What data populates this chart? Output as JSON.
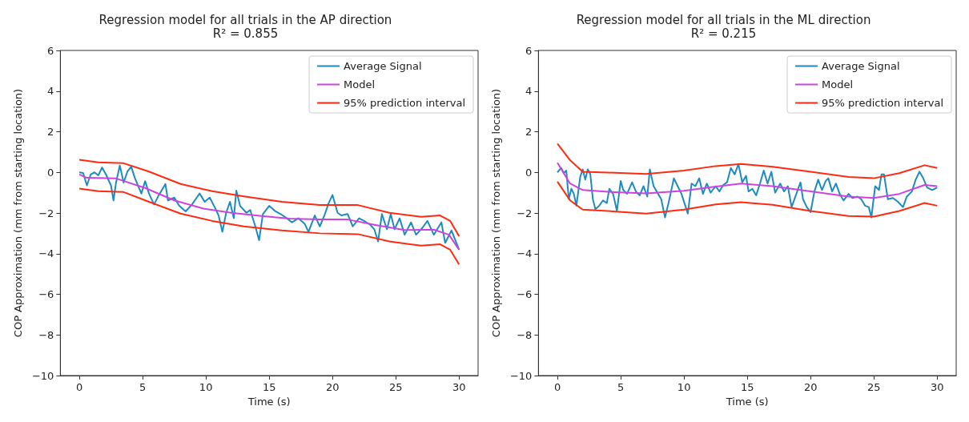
{
  "chart_data": [
    {
      "type": "line",
      "title": "Regression model for all trials in the AP direction",
      "subtitle": "R² = 0.855",
      "xlabel": "Time (s)",
      "ylabel": "COP Approximation (mm from starting location)",
      "xlim": [
        -1.5,
        31.5
      ],
      "xticks": [
        0,
        5,
        10,
        15,
        20,
        25,
        30
      ],
      "ylim": [
        -10,
        6
      ],
      "yticks": [
        {
          "value": -10,
          "label": "−10"
        },
        {
          "value": -8,
          "label": "−8"
        },
        {
          "value": -6,
          "label": "−6"
        },
        {
          "value": -4,
          "label": "−4"
        },
        {
          "value": -2,
          "label": "−2"
        },
        0,
        2,
        4,
        6
      ],
      "legend": "top right",
      "grid": false,
      "marker": "none",
      "line_style": "solid",
      "series": [
        {
          "name": "Average Signal",
          "color": "#1f8ac0",
          "x": [
            0,
            0.3,
            0.6,
            0.9,
            1.2,
            1.5,
            1.8,
            2.1,
            2.5,
            2.7,
            2.9,
            3.2,
            3.5,
            3.8,
            4.1,
            4.4,
            4.9,
            5.2,
            5.5,
            5.9,
            6.3,
            6.8,
            7.0,
            7.5,
            7.9,
            8.4,
            8.9,
            9.2,
            9.5,
            9.9,
            10.3,
            10.7,
            11.0,
            11.3,
            11.6,
            11.9,
            12.2,
            12.4,
            12.7,
            13.2,
            13.5,
            13.9,
            14.2,
            14.5,
            15.0,
            15.5,
            15.9,
            16.4,
            16.8,
            17.3,
            17.8,
            18.1,
            18.6,
            19.0,
            19.4,
            19.7,
            20.0,
            20.4,
            20.7,
            21.2,
            21.6,
            22.1,
            22.5,
            23.0,
            23.3,
            23.6,
            23.9,
            24.3,
            24.6,
            24.9,
            25.3,
            25.7,
            26.2,
            26.6,
            27.1,
            27.5,
            28.0,
            28.6,
            28.9,
            29.4,
            30
          ],
          "values": [
            0,
            -0.03,
            -0.64,
            -0.1,
            0,
            -0.15,
            0.24,
            -0.1,
            -0.64,
            -1.38,
            -0.5,
            0.34,
            -0.5,
            0.04,
            0.28,
            -0.3,
            -1.04,
            -0.43,
            -1.04,
            -1.58,
            -1.1,
            -0.57,
            -1.38,
            -1.24,
            -1.65,
            -1.92,
            -1.58,
            -1.31,
            -1.04,
            -1.45,
            -1.24,
            -1.72,
            -2.12,
            -2.93,
            -1.99,
            -1.45,
            -2.26,
            -0.9,
            -1.65,
            -1.99,
            -1.85,
            -2.65,
            -3.34,
            -2.05,
            -1.65,
            -1.92,
            -2.05,
            -2.26,
            -2.46,
            -2.26,
            -2.53,
            -2.93,
            -2.12,
            -2.66,
            -2.05,
            -1.51,
            -1.11,
            -1.99,
            -2.12,
            -2.05,
            -2.66,
            -2.26,
            -2.39,
            -2.59,
            -2.8,
            -3.4,
            -2.05,
            -2.8,
            -2.05,
            -2.8,
            -2.26,
            -3.07,
            -2.46,
            -3.07,
            -2.73,
            -2.39,
            -3.07,
            -2.46,
            -3.47,
            -2.86,
            -3.81
          ]
        },
        {
          "name": "Model",
          "color": "#cc44dd",
          "x": [
            0,
            0.6,
            2.9,
            5.2,
            7.5,
            9.8,
            12.0,
            14.4,
            16.6,
            18.9,
            21.2,
            23.4,
            25.7,
            28.0,
            29.2,
            30
          ],
          "values": [
            -0.1,
            -0.27,
            -0.3,
            -0.77,
            -1.38,
            -1.78,
            -1.99,
            -2.15,
            -2.28,
            -2.32,
            -2.32,
            -2.59,
            -2.84,
            -2.82,
            -3.07,
            -3.81
          ]
        },
        {
          "name": "95% prediction interval",
          "color": "#ff2a10",
          "x": [
            0,
            1.5,
            3.5,
            5.5,
            8,
            10.5,
            13,
            16,
            19,
            22,
            24.5,
            27,
            28.5,
            29.3,
            30
          ],
          "values": [
            0.62,
            0.49,
            0.45,
            0.04,
            -0.57,
            -0.93,
            -1.18,
            -1.45,
            -1.61,
            -1.61,
            -1.99,
            -2.19,
            -2.12,
            -2.39,
            -3.14
          ]
        },
        {
          "color": "#ff2a10",
          "x": [
            0,
            1.5,
            3.5,
            5.5,
            8,
            10.5,
            13,
            16,
            19,
            22,
            24.5,
            27,
            28.5,
            29.3,
            30
          ],
          "values": [
            -0.8,
            -0.93,
            -0.97,
            -1.45,
            -2.03,
            -2.39,
            -2.66,
            -2.86,
            -3.0,
            -3.04,
            -3.4,
            -3.61,
            -3.54,
            -3.81,
            -4.53
          ]
        }
      ]
    },
    {
      "type": "line",
      "title": "Regression model for all trials in the ML direction",
      "subtitle": "R² = 0.215",
      "xlabel": "Time (s)",
      "ylabel": "COP Approximation (mm from starting location)",
      "xlim": [
        -1.5,
        31.5
      ],
      "xticks": [
        0,
        5,
        10,
        15,
        20,
        25,
        30
      ],
      "ylim": [
        -10,
        6
      ],
      "yticks": [
        {
          "value": -10,
          "label": "−10"
        },
        {
          "value": -8,
          "label": "−8"
        },
        {
          "value": -6,
          "label": "−6"
        },
        {
          "value": -4,
          "label": "−4"
        },
        {
          "value": -2,
          "label": "−2"
        },
        0,
        2,
        4,
        6
      ],
      "legend": "top right",
      "grid": false,
      "marker": "none",
      "line_style": "solid",
      "series": [
        {
          "name": "Average Signal",
          "color": "#1f8ac0",
          "x": [
            0,
            0.3,
            0.5,
            0.7,
            0.9,
            1.1,
            1.3,
            1.5,
            1.8,
            2.0,
            2.2,
            2.4,
            2.6,
            2.8,
            3.0,
            3.3,
            3.6,
            3.9,
            4.1,
            4.4,
            4.7,
            5.0,
            5.2,
            5.5,
            5.9,
            6.2,
            6.5,
            6.8,
            7.1,
            7.3,
            7.6,
            7.9,
            8.2,
            8.5,
            8.8,
            9.2,
            9.5,
            9.8,
            10.1,
            10.3,
            10.6,
            10.9,
            11.2,
            11.5,
            11.8,
            12.1,
            12.5,
            12.8,
            13.1,
            13.4,
            13.7,
            14.0,
            14.3,
            14.6,
            14.9,
            15.1,
            15.4,
            15.7,
            16.0,
            16.3,
            16.6,
            16.9,
            17.2,
            17.6,
            17.9,
            18.2,
            18.5,
            18.8,
            19.2,
            19.4,
            19.7,
            20.0,
            20.3,
            20.6,
            20.9,
            21.2,
            21.4,
            21.7,
            22.0,
            22.3,
            22.6,
            23.0,
            23.3,
            23.7,
            24.0,
            24.3,
            24.6,
            24.8,
            25.1,
            25.4,
            25.6,
            25.8,
            26.1,
            26.5,
            26.9,
            27.3,
            27.6,
            28.0,
            28.3,
            28.6,
            28.9,
            29.2,
            29.6,
            30
          ],
          "values": [
            0,
            0.22,
            -0.04,
            0.09,
            -1.32,
            -0.81,
            -1.06,
            -1.64,
            -0.23,
            0.15,
            -0.36,
            0.15,
            -0.1,
            -1.32,
            -1.81,
            -1.64,
            -1.38,
            -1.51,
            -0.81,
            -1.06,
            -1.9,
            -0.42,
            -0.87,
            -1.06,
            -0.49,
            -0.94,
            -1.13,
            -0.68,
            -1.19,
            0.15,
            -0.68,
            -1.0,
            -1.32,
            -2.22,
            -1.45,
            -0.29,
            -0.68,
            -1.06,
            -1.64,
            -2.03,
            -0.55,
            -0.68,
            -0.29,
            -1.06,
            -0.55,
            -1.0,
            -0.68,
            -0.94,
            -0.62,
            -0.49,
            0.22,
            -0.1,
            0.41,
            -0.49,
            -0.17,
            -0.94,
            -0.81,
            -1.13,
            -0.55,
            0.09,
            -0.55,
            0.03,
            -1.0,
            -0.55,
            -0.94,
            -0.68,
            -1.71,
            -1.19,
            -0.49,
            -1.32,
            -1.71,
            -1.96,
            -0.94,
            -0.36,
            -0.87,
            -0.42,
            -0.29,
            -0.94,
            -0.55,
            -1.06,
            -1.38,
            -1.06,
            -1.26,
            -1.19,
            -1.32,
            -1.64,
            -1.71,
            -2.22,
            -0.68,
            -0.87,
            -0.1,
            -0.1,
            -1.32,
            -1.26,
            -1.45,
            -1.71,
            -1.19,
            -0.94,
            -0.36,
            0.03,
            -0.29,
            -0.74,
            -0.87,
            -0.74
          ]
        },
        {
          "name": "Model",
          "color": "#cc44dd",
          "x": [
            0,
            1,
            2,
            4,
            7,
            10,
            12,
            14.5,
            17,
            20,
            23,
            25,
            27,
            29,
            30
          ],
          "values": [
            0.47,
            -0.55,
            -0.87,
            -0.96,
            -1.03,
            -0.91,
            -0.74,
            -0.55,
            -0.68,
            -0.94,
            -1.19,
            -1.26,
            -1.06,
            -0.62,
            -0.68
          ]
        },
        {
          "name": "95% prediction interval",
          "color": "#ff2a10",
          "x": [
            0,
            1,
            2,
            4,
            7,
            10,
            12.5,
            14.5,
            17,
            20,
            23,
            25,
            27,
            29,
            30
          ],
          "values": [
            1.41,
            0.6,
            0.03,
            -0.01,
            -0.08,
            0.09,
            0.31,
            0.41,
            0.28,
            0.03,
            -0.23,
            -0.29,
            -0.04,
            0.35,
            0.22
          ]
        },
        {
          "color": "#ff2a10",
          "x": [
            0,
            1,
            2,
            4,
            7,
            10,
            12.5,
            14.5,
            17,
            20,
            23,
            25,
            27,
            29,
            30
          ],
          "values": [
            -0.46,
            -1.38,
            -1.83,
            -1.9,
            -2.03,
            -1.83,
            -1.58,
            -1.47,
            -1.6,
            -1.9,
            -2.15,
            -2.18,
            -1.9,
            -1.51,
            -1.64
          ]
        }
      ]
    }
  ]
}
